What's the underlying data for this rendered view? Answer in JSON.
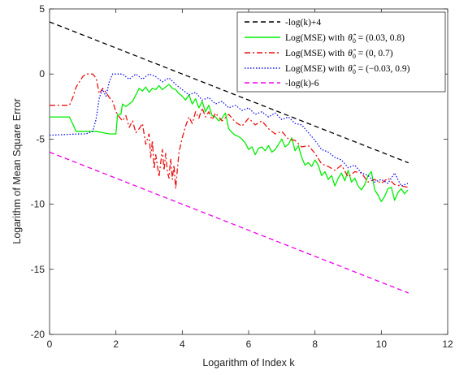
{
  "chart_data": {
    "type": "line",
    "xlabel": "Logarithm of Index k",
    "ylabel": "Logarithm of Mean Square Error",
    "xlim": [
      0,
      12
    ],
    "ylim": [
      -20,
      5
    ],
    "xticks": [
      0,
      2,
      4,
      6,
      8,
      10,
      12
    ],
    "yticks": [
      -20,
      -15,
      -10,
      -5,
      0,
      5
    ],
    "xtick_labels": [
      "0",
      "2",
      "4",
      "6",
      "8",
      "10",
      "12"
    ],
    "ytick_labels": [
      "-20",
      "-15",
      "-10",
      "-5",
      "0",
      "5"
    ],
    "grid": false,
    "legend_position": "top-right",
    "series": [
      {
        "name": "-log(k)+4",
        "color": "#000000",
        "dash": "dashed",
        "x": [
          0,
          10.82
        ],
        "y": [
          4,
          -6.82
        ]
      },
      {
        "name": "Log(MSE) with θ̂₀ = (0.03, 0.8)",
        "legend_prefix": "Log(MSE) with",
        "legend_value": "(0.03, 0.8)",
        "color": "#00ee00",
        "dash": "solid",
        "x": [
          0,
          0.6,
          0.8,
          1.4,
          1.8,
          2.0,
          2.05,
          2.15,
          2.2,
          2.3,
          2.4,
          2.5,
          2.6,
          2.7,
          2.8,
          2.9,
          3.0,
          3.1,
          3.2,
          3.3,
          3.4,
          3.5,
          3.6,
          3.7,
          3.8,
          3.9,
          4.0,
          4.1,
          4.2,
          4.3,
          4.4,
          4.5,
          4.6,
          4.7,
          4.8,
          4.9,
          5.0,
          5.1,
          5.2,
          5.3,
          5.4,
          5.5,
          5.6,
          5.7,
          5.8,
          5.9,
          6.0,
          6.1,
          6.2,
          6.3,
          6.4,
          6.5,
          6.6,
          6.7,
          6.8,
          6.9,
          7.0,
          7.1,
          7.2,
          7.3,
          7.4,
          7.5,
          7.6,
          7.7,
          7.8,
          7.9,
          8.0,
          8.1,
          8.2,
          8.3,
          8.4,
          8.5,
          8.6,
          8.7,
          8.8,
          8.9,
          9.0,
          9.1,
          9.2,
          9.3,
          9.4,
          9.5,
          9.6,
          9.7,
          9.8,
          9.9,
          10.0,
          10.1,
          10.2,
          10.3,
          10.4,
          10.5,
          10.6,
          10.7,
          10.8
        ],
        "y": [
          -3.3,
          -3.3,
          -4.4,
          -4.4,
          -4.6,
          -4.6,
          -3.1,
          -3.1,
          -2.3,
          -2.5,
          -2.3,
          -2.1,
          -1.6,
          -1.1,
          -1.3,
          -1.0,
          -1.4,
          -1.1,
          -1.2,
          -0.9,
          -1.2,
          -1.0,
          -0.8,
          -1.1,
          -1.2,
          -1.5,
          -1.7,
          -2.0,
          -1.6,
          -2.3,
          -1.9,
          -2.6,
          -2.1,
          -2.9,
          -2.4,
          -3.2,
          -3.3,
          -3.6,
          -3.4,
          -3.0,
          -4.2,
          -4.5,
          -4.7,
          -4.8,
          -5.0,
          -5.3,
          -5.8,
          -5.6,
          -6.2,
          -5.7,
          -5.6,
          -5.9,
          -5.5,
          -6.0,
          -5.8,
          -5.4,
          -5.0,
          -5.6,
          -5.4,
          -4.9,
          -5.9,
          -5.5,
          -6.4,
          -7.0,
          -6.8,
          -7.1,
          -6.6,
          -7.0,
          -7.8,
          -7.5,
          -8.1,
          -7.8,
          -8.6,
          -8.0,
          -7.6,
          -8.2,
          -7.4,
          -8.3,
          -8.0,
          -8.6,
          -8.9,
          -8.5,
          -7.8,
          -7.5,
          -8.9,
          -9.3,
          -9.8,
          -9.4,
          -8.8,
          -8.7,
          -9.7,
          -9.1,
          -8.8,
          -9.2,
          -8.9
        ]
      },
      {
        "name": "Log(MSE) with θ̂₀ = (0, 0.7)",
        "legend_prefix": "Log(MSE) with",
        "legend_value": "(0, 0.7)",
        "color": "#ee1111",
        "dash": "dashdot",
        "x": [
          0,
          0.6,
          0.7,
          0.8,
          0.9,
          1.0,
          1.1,
          1.2,
          1.3,
          1.4,
          1.5,
          1.6,
          1.7,
          1.8,
          1.9,
          2.0,
          2.1,
          2.2,
          2.3,
          2.4,
          2.5,
          2.6,
          2.7,
          2.8,
          2.9,
          3.0,
          3.05,
          3.1,
          3.15,
          3.2,
          3.3,
          3.4,
          3.45,
          3.5,
          3.55,
          3.6,
          3.65,
          3.7,
          3.75,
          3.8,
          3.85,
          3.9,
          4.0,
          4.1,
          4.2,
          4.3,
          4.4,
          4.5,
          4.6,
          4.7,
          4.8,
          4.9,
          5.0,
          5.2,
          5.4,
          5.6,
          5.8,
          6.0,
          6.2,
          6.4,
          6.6,
          6.8,
          7.0,
          7.2,
          7.4,
          7.6,
          7.8,
          8.0,
          8.2,
          8.4,
          8.6,
          8.8,
          9.0,
          9.2,
          9.4,
          9.6,
          9.8,
          10.0,
          10.2,
          10.4,
          10.6,
          10.8
        ],
        "y": [
          -2.4,
          -2.4,
          -1.8,
          -1.0,
          -0.6,
          -0.2,
          0.0,
          0.0,
          0.0,
          -0.3,
          -1.5,
          -1.1,
          -1.4,
          -1.8,
          -2.1,
          -2.9,
          -3.3,
          -3.6,
          -3.2,
          -4.1,
          -3.6,
          -4.5,
          -4.2,
          -3.8,
          -5.4,
          -4.6,
          -6.4,
          -5.1,
          -7.3,
          -6.2,
          -7.9,
          -5.8,
          -7.4,
          -6.1,
          -7.5,
          -8.0,
          -6.5,
          -8.1,
          -7.0,
          -8.8,
          -7.4,
          -6.0,
          -4.9,
          -4.0,
          -3.3,
          -3.8,
          -2.9,
          -3.4,
          -2.6,
          -3.3,
          -2.9,
          -3.5,
          -3.0,
          -3.6,
          -3.1,
          -3.7,
          -4.0,
          -3.4,
          -3.9,
          -3.6,
          -4.2,
          -4.6,
          -4.4,
          -5.0,
          -5.1,
          -5.6,
          -5.5,
          -6.1,
          -6.9,
          -7.1,
          -7.4,
          -7.0,
          -7.9,
          -7.5,
          -7.6,
          -8.3,
          -8.1,
          -8.4,
          -8.0,
          -8.5,
          -8.6,
          -8.7
        ]
      },
      {
        "name": "Log(MSE) with θ̂₀ = (−0.03, 0.9)",
        "legend_prefix": "Log(MSE) with",
        "legend_value": "(−0.03, 0.9)",
        "color": "#1111ee",
        "dash": "dotted",
        "x": [
          0,
          0.9,
          1.1,
          1.3,
          1.4,
          1.5,
          1.6,
          1.7,
          1.8,
          1.9,
          2.0,
          2.2,
          2.4,
          2.6,
          2.8,
          3.0,
          3.2,
          3.4,
          3.6,
          3.8,
          4.0,
          4.2,
          4.4,
          4.6,
          4.8,
          5.0,
          5.2,
          5.4,
          5.6,
          5.8,
          6.0,
          6.2,
          6.4,
          6.6,
          6.8,
          7.0,
          7.2,
          7.4,
          7.6,
          7.8,
          8.0,
          8.2,
          8.4,
          8.6,
          8.8,
          9.0,
          9.2,
          9.4,
          9.6,
          9.8,
          10.0,
          10.2,
          10.4,
          10.6,
          10.8
        ],
        "y": [
          -4.7,
          -4.6,
          -4.6,
          -4.4,
          -3.5,
          -1.8,
          -1.2,
          -1.7,
          -0.6,
          0.0,
          0.0,
          0.0,
          -0.4,
          0.0,
          -0.4,
          0.0,
          -0.2,
          -0.6,
          -0.3,
          -0.8,
          -1.2,
          -1.6,
          -1.4,
          -2.0,
          -1.8,
          -2.3,
          -2.1,
          -2.6,
          -2.4,
          -2.8,
          -2.6,
          -3.1,
          -2.9,
          -3.3,
          -3.0,
          -3.5,
          -3.3,
          -3.8,
          -3.9,
          -4.5,
          -5.1,
          -5.8,
          -6.0,
          -6.4,
          -6.6,
          -7.2,
          -7.0,
          -7.6,
          -7.8,
          -8.3,
          -8.1,
          -8.4,
          -7.6,
          -8.6,
          -8.4
        ]
      },
      {
        "name": "-log(k)-6",
        "color": "#ee00ee",
        "dash": "dashed",
        "x": [
          0,
          10.82
        ],
        "y": [
          -6,
          -16.82
        ]
      }
    ]
  }
}
